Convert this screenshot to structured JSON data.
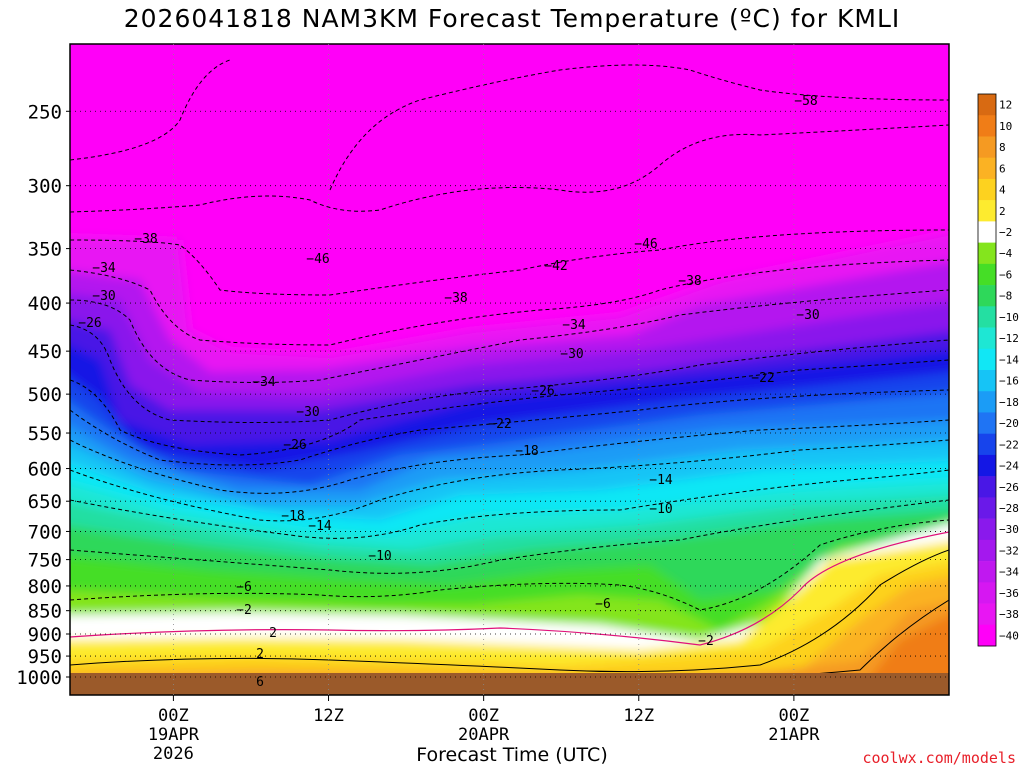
{
  "header": {
    "title": "2026041818 NAM3KM Forecast Temperature (ºC) for KMLI"
  },
  "footer": {
    "credit": "coolwx.com/models"
  },
  "chart_data": {
    "type": "heatmap",
    "title": "2026041818 NAM3KM Forecast Temperature (ºC) for KMLI",
    "xlabel": "Forecast Time (UTC)",
    "ylabel": "",
    "x_range_hours_from_init": [
      -6,
      96
    ],
    "x_ticks": [
      {
        "hour": 6,
        "lines": [
          "00Z",
          "19APR",
          "2026"
        ]
      },
      {
        "hour": 24,
        "lines": [
          "12Z"
        ]
      },
      {
        "hour": 42,
        "lines": [
          "00Z",
          "20APR"
        ]
      },
      {
        "hour": 60,
        "lines": [
          "12Z"
        ]
      },
      {
        "hour": 78,
        "lines": [
          "00Z",
          "21APR"
        ]
      }
    ],
    "y_ticks_hPa": [
      250,
      300,
      350,
      400,
      450,
      500,
      550,
      600,
      650,
      700,
      750,
      800,
      850,
      900,
      950,
      1000
    ],
    "colorbar": {
      "ticks": [
        12,
        10,
        8,
        6,
        4,
        2,
        -2,
        -4,
        -6,
        -8,
        -10,
        -12,
        -14,
        -16,
        -18,
        -20,
        -22,
        -24,
        -26,
        -28,
        -30,
        -32,
        -34,
        -36,
        -38,
        -40
      ],
      "colors": [
        "#d86a12",
        "#f07d17",
        "#f59a22",
        "#fbb223",
        "#fdd21f",
        "#fdeb2f",
        "#ffffff",
        "#84e51d",
        "#45de26",
        "#2ed85a",
        "#24dfa2",
        "#1ee7d4",
        "#11e7f5",
        "#16c4f6",
        "#1b9cf6",
        "#1f74f4",
        "#1744ec",
        "#1417e5",
        "#4917e6",
        "#6a19e9",
        "#8a19ec",
        "#a418ee",
        "#c018f0",
        "#d617f2",
        "#e816f3",
        "#ff00f8"
      ]
    },
    "contour_labels": [
      -58,
      -46,
      -46,
      -42,
      -38,
      -38,
      -38,
      -34,
      -34,
      -34,
      -30,
      -30,
      -30,
      -30,
      -26,
      -26,
      -26,
      -22,
      -22,
      -18,
      -18,
      -14,
      -14,
      -10,
      -10,
      -6,
      -6,
      -2,
      -2,
      2,
      2,
      6
    ]
  }
}
